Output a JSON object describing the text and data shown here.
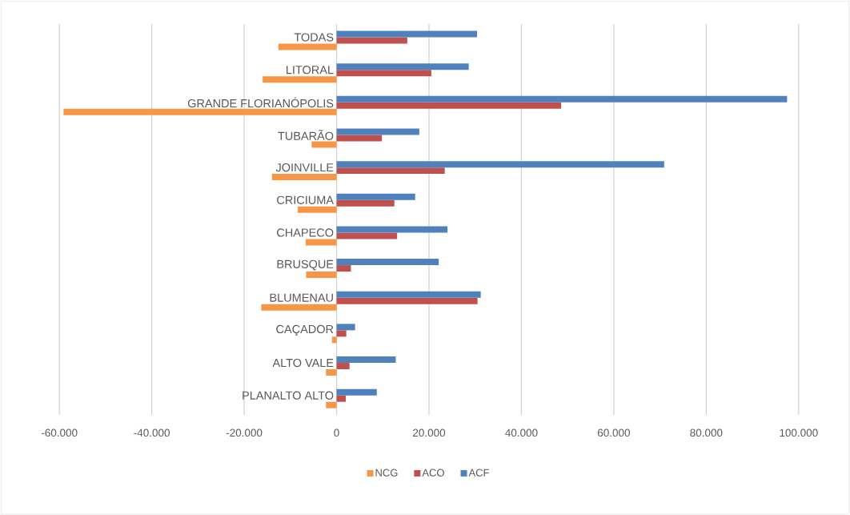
{
  "chart_data": {
    "type": "bar",
    "orientation": "horizontal",
    "categories": [
      "TODAS",
      "LITORAL",
      "GRANDE FLORIANÓPOLIS",
      "TUBARÃO",
      "JOINVILLE",
      "CRICIUMA",
      "CHAPECO",
      "BRUSQUE",
      "BLUMENAU",
      "CAÇADOR",
      "ALTO VALE",
      "PLANALTO ALTO"
    ],
    "series": [
      {
        "name": "NCG",
        "color": "#f79646",
        "values": [
          -12600,
          -16000,
          -59100,
          -5400,
          -14000,
          -8400,
          -6700,
          -6600,
          -16300,
          -1000,
          -2300,
          -2300
        ]
      },
      {
        "name": "ACO",
        "color": "#c0504d",
        "values": [
          15300,
          20500,
          48600,
          9800,
          23400,
          12500,
          13100,
          3100,
          30500,
          2100,
          2800,
          2000
        ]
      },
      {
        "name": "ACF",
        "color": "#4f81bd",
        "values": [
          30400,
          28600,
          97500,
          17900,
          70900,
          17000,
          24000,
          22100,
          31200,
          4000,
          12800,
          8700
        ]
      }
    ],
    "xlim": [
      -60000,
      100000
    ],
    "xticks": [
      {
        "value": -60000,
        "label": "-60.000"
      },
      {
        "value": -40000,
        "label": "-40.000"
      },
      {
        "value": -20000,
        "label": "-20.000"
      },
      0,
      {
        "value": 20000,
        "label": "20.000"
      },
      {
        "value": 40000,
        "label": "40.000"
      },
      {
        "value": 60000,
        "label": "60.000"
      },
      {
        "value": 80000,
        "label": "80.000"
      },
      {
        "value": 100000,
        "label": "100.000"
      }
    ],
    "grid": "x",
    "legend": "bottom"
  }
}
